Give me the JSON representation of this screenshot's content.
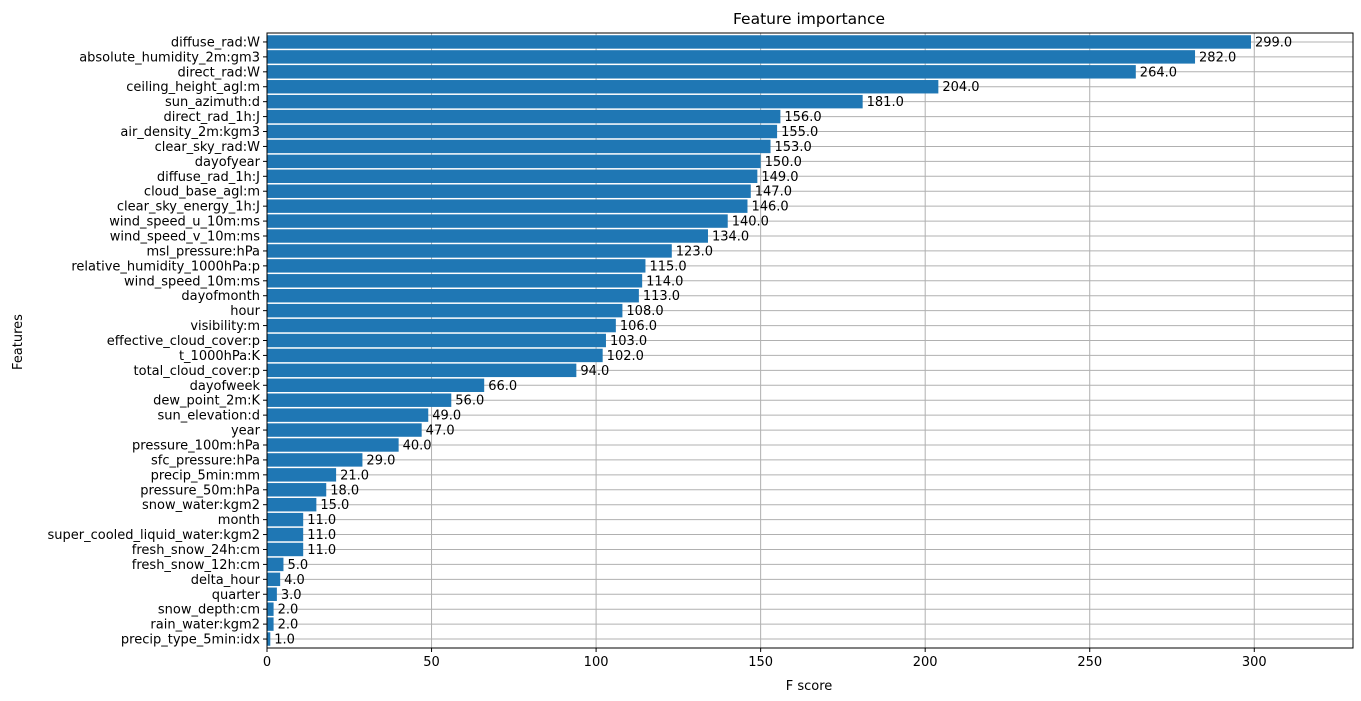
{
  "chart_data": {
    "type": "bar",
    "orientation": "horizontal",
    "title": "Feature importance",
    "xlabel": "F score",
    "ylabel": "Features",
    "xlim": [
      0,
      330
    ],
    "xticks": [
      0,
      50,
      100,
      150,
      200,
      250,
      300
    ],
    "grid": true,
    "bar_color": "#1f77b4",
    "grid_color": "#b0b0b0",
    "categories": [
      "diffuse_rad:W",
      "absolute_humidity_2m:gm3",
      "direct_rad:W",
      "ceiling_height_agl:m",
      "sun_azimuth:d",
      "direct_rad_1h:J",
      "air_density_2m:kgm3",
      "clear_sky_rad:W",
      "dayofyear",
      "diffuse_rad_1h:J",
      "cloud_base_agl:m",
      "clear_sky_energy_1h:J",
      "wind_speed_u_10m:ms",
      "wind_speed_v_10m:ms",
      "msl_pressure:hPa",
      "relative_humidity_1000hPa:p",
      "wind_speed_10m:ms",
      "dayofmonth",
      "hour",
      "visibility:m",
      "effective_cloud_cover:p",
      "t_1000hPa:K",
      "total_cloud_cover:p",
      "dayofweek",
      "dew_point_2m:K",
      "sun_elevation:d",
      "year",
      "pressure_100m:hPa",
      "sfc_pressure:hPa",
      "precip_5min:mm",
      "pressure_50m:hPa",
      "snow_water:kgm2",
      "month",
      "super_cooled_liquid_water:kgm2",
      "fresh_snow_24h:cm",
      "fresh_snow_12h:cm",
      "delta_hour",
      "quarter",
      "snow_depth:cm",
      "rain_water:kgm2",
      "precip_type_5min:idx"
    ],
    "values": [
      299,
      282,
      264,
      204,
      181,
      156,
      155,
      153,
      150,
      149,
      147,
      146,
      140,
      134,
      123,
      115,
      114,
      113,
      108,
      106,
      103,
      102,
      94,
      66,
      56,
      49,
      47,
      40,
      29,
      21,
      18,
      15,
      11,
      11,
      11,
      5,
      4,
      3,
      2,
      2,
      1
    ],
    "value_labels": [
      "299.0",
      "282.0",
      "264.0",
      "204.0",
      "181.0",
      "156.0",
      "155.0",
      "153.0",
      "150.0",
      "149.0",
      "147.0",
      "146.0",
      "140.0",
      "134.0",
      "123.0",
      "115.0",
      "114.0",
      "113.0",
      "108.0",
      "106.0",
      "103.0",
      "102.0",
      "94.0",
      "66.0",
      "56.0",
      "49.0",
      "47.0",
      "40.0",
      "29.0",
      "21.0",
      "18.0",
      "15.0",
      "11.0",
      "11.0",
      "11.0",
      "5.0",
      "4.0",
      "3.0",
      "2.0",
      "2.0",
      "1.0"
    ]
  }
}
